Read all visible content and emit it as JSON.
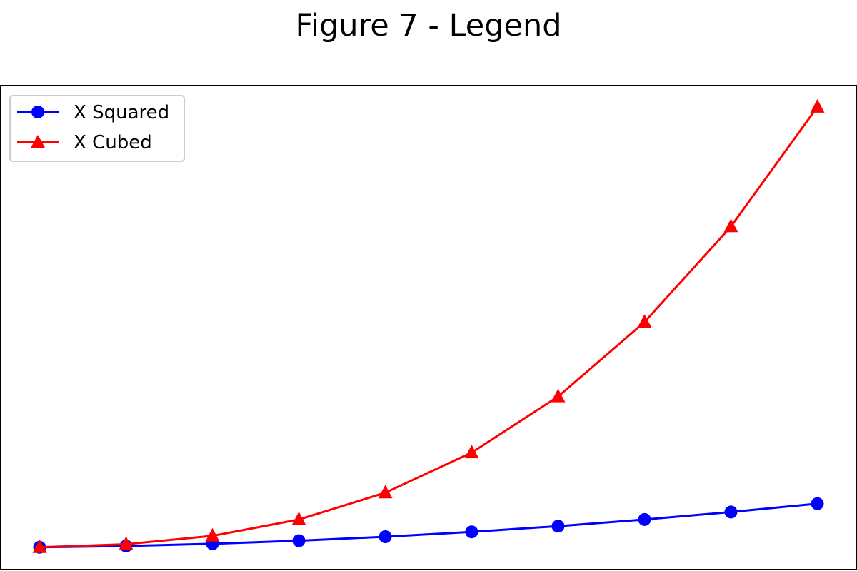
{
  "chart_data": {
    "type": "line",
    "title": "Figure 7 - Legend",
    "xlabel": "",
    "ylabel": "",
    "x": [
      1,
      2,
      3,
      4,
      5,
      6,
      7,
      8,
      9,
      10
    ],
    "xlim": [
      0.55,
      10.45
    ],
    "ylim": [
      -49.45,
      1048.45
    ],
    "grid": false,
    "axes_ticks": false,
    "legend_position": "top-left",
    "series": [
      {
        "name": "X Squared",
        "values": [
          1,
          4,
          9,
          16,
          25,
          36,
          49,
          64,
          81,
          100
        ],
        "color": "#0000ff",
        "marker": "circle"
      },
      {
        "name": "X Cubed",
        "values": [
          1,
          8,
          27,
          64,
          125,
          216,
          343,
          512,
          729,
          1000
        ],
        "color": "#ff0000",
        "marker": "triangle"
      }
    ]
  }
}
